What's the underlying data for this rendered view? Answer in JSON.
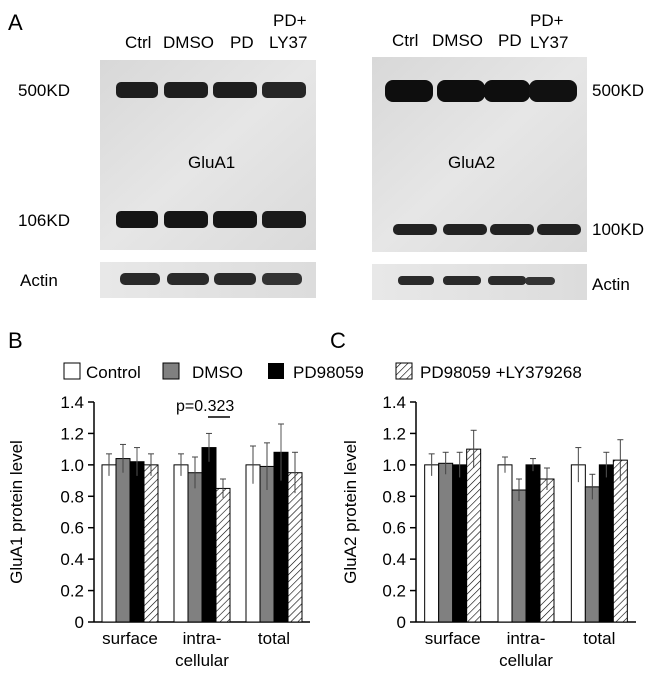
{
  "panel_labels": {
    "a": "A",
    "b": "B",
    "c": "C"
  },
  "blot_left": {
    "lanes": [
      "Ctrl",
      "DMSO",
      "PD",
      "PD+",
      "LY37"
    ],
    "marker_top": "500KD",
    "marker_bottom": "106KD",
    "protein": "GluA1",
    "loading": "Actin"
  },
  "blot_right": {
    "lanes": [
      "Ctrl",
      "DMSO",
      "PD",
      "PD+",
      "LY37"
    ],
    "marker_top": "500KD",
    "marker_bottom": "100KD",
    "protein": "GluA2",
    "loading": "Actin"
  },
  "legend": [
    "Control",
    "DMSO",
    "PD98059",
    "PD98059 +LY379268"
  ],
  "colors": {
    "control": "#ffffff",
    "dmso": "#808080",
    "pd": "#000000",
    "pd_ly": "hatched",
    "blot_bg": "#e0e0e0",
    "band": "#1a1a1a"
  },
  "chart_data": [
    {
      "type": "bar",
      "panel": "B",
      "ylabel": "GluA1 protein level",
      "ylim": [
        0,
        1.4
      ],
      "yticks": [
        "0",
        "0.2",
        "0.4",
        "0.6",
        "0.8",
        "1.0",
        "1.2",
        "1.4"
      ],
      "categories": [
        "surface",
        "intra-\ncellular",
        "total"
      ],
      "annotation": "p=0.323",
      "series": [
        {
          "name": "Control",
          "values": [
            1.0,
            1.0,
            1.0
          ],
          "errors": [
            0.07,
            0.07,
            0.12
          ]
        },
        {
          "name": "DMSO",
          "values": [
            1.04,
            0.95,
            0.99
          ],
          "errors": [
            0.09,
            0.1,
            0.15
          ]
        },
        {
          "name": "PD98059",
          "values": [
            1.02,
            1.11,
            1.08
          ],
          "errors": [
            0.09,
            0.09,
            0.18
          ]
        },
        {
          "name": "PD98059 +LY379268",
          "values": [
            1.0,
            0.85,
            0.95
          ],
          "errors": [
            0.07,
            0.06,
            0.13
          ]
        }
      ]
    },
    {
      "type": "bar",
      "panel": "C",
      "ylabel": "GluA2 protein level",
      "ylim": [
        0,
        1.4
      ],
      "yticks": [
        "0",
        "0.2",
        "0.4",
        "0.6",
        "0.8",
        "1.0",
        "1.2",
        "1.4"
      ],
      "categories": [
        "surface",
        "intra-\ncellular",
        "total"
      ],
      "series": [
        {
          "name": "Control",
          "values": [
            1.0,
            1.0,
            1.0
          ],
          "errors": [
            0.07,
            0.05,
            0.11
          ]
        },
        {
          "name": "DMSO",
          "values": [
            1.01,
            0.84,
            0.86
          ],
          "errors": [
            0.07,
            0.07,
            0.08
          ]
        },
        {
          "name": "PD98059",
          "values": [
            1.0,
            1.0,
            1.0
          ],
          "errors": [
            0.08,
            0.04,
            0.08
          ]
        },
        {
          "name": "PD98059 +LY379268",
          "values": [
            1.1,
            0.91,
            1.03
          ],
          "errors": [
            0.12,
            0.07,
            0.13
          ]
        }
      ]
    }
  ]
}
